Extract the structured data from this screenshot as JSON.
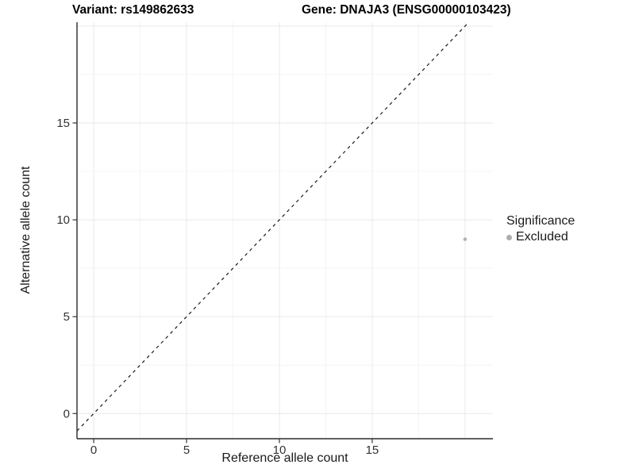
{
  "titles": {
    "left": "Variant: rs149862633",
    "right": "Gene: DNAJA3 (ENSG00000103423)"
  },
  "chart_data": {
    "type": "scatter",
    "title": "Variant: rs149862633   Gene: DNAJA3 (ENSG00000103423)",
    "xlabel": "Reference allele count",
    "ylabel": "Alternative allele count",
    "x_ticks": [
      0,
      5,
      10,
      15
    ],
    "y_ticks": [
      0,
      5,
      10,
      15
    ],
    "x_range": [
      -0.9,
      21.5
    ],
    "y_range": [
      -1.3,
      20.2
    ],
    "grid": {
      "on": true,
      "minor_every": 2.5,
      "major_every": 5,
      "major_color": "#e9e9e9",
      "minor_color": "#f4f4f4"
    },
    "reference_line": {
      "type": "identity",
      "slope": 1,
      "intercept": 0,
      "linetype": "dashed",
      "color": "#1a1a1a"
    },
    "series": [
      {
        "name": "Excluded",
        "color": "#b3b3b3",
        "point_radius": 2.3,
        "points": [
          {
            "x": 20,
            "y": 9
          }
        ]
      }
    ],
    "legend": {
      "title": "Significance",
      "position": "right",
      "items": [
        {
          "label": "Excluded",
          "color": "#adadad"
        }
      ]
    }
  },
  "style_colors": {
    "axis_line": "#2b2b2b",
    "tick_mark": "#333333",
    "tick_label": "#333333",
    "background": "#ffffff"
  }
}
